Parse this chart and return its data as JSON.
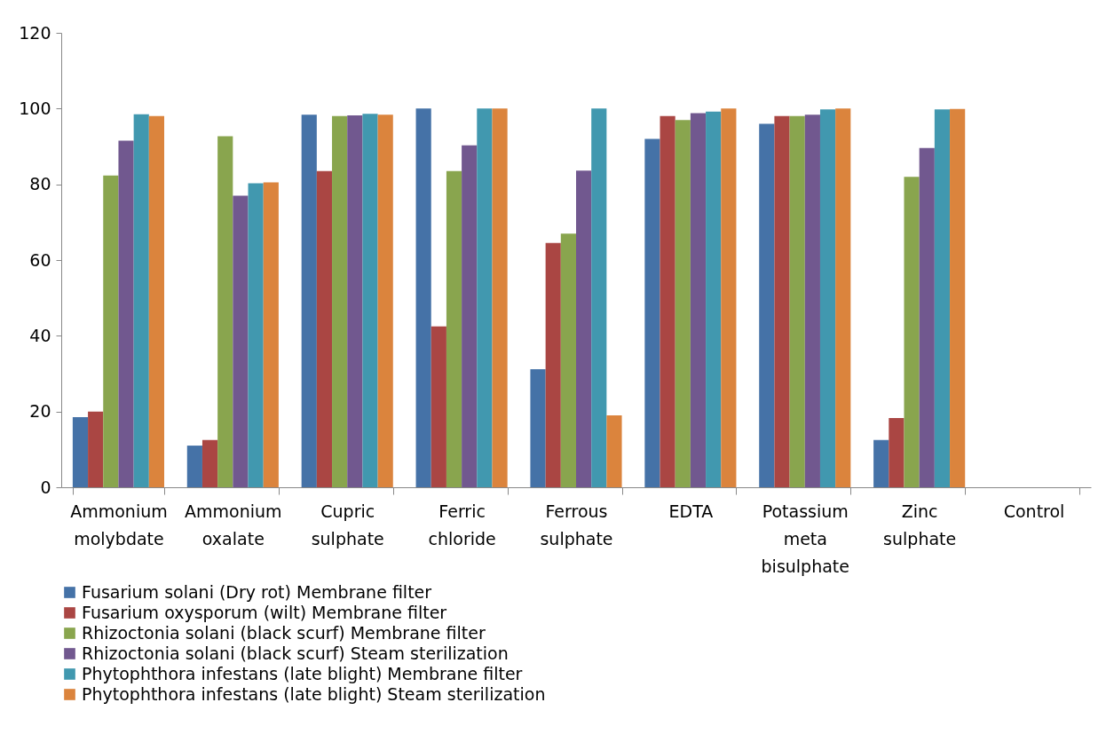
{
  "chart_data": {
    "type": "bar",
    "categories": [
      "Ammonium molybdate",
      "Ammonium oxalate",
      "Cupric sulphate",
      "Ferric chloride",
      "Ferrous sulphate",
      "EDTA",
      "Potassium meta bisulphate",
      "Zinc sulphate",
      "Control"
    ],
    "series": [
      {
        "name": "Fusarium solani (Dry rot) Membrane filter",
        "color": "#4572a7",
        "values": [
          18.5,
          11,
          98.4,
          100,
          31.2,
          92,
          96,
          12.5,
          0
        ]
      },
      {
        "name": "Fusarium oxysporum (wilt) Membrane filter",
        "color": "#aa4643",
        "values": [
          20,
          12.5,
          83.5,
          42.5,
          64.5,
          98,
          98,
          18.3,
          0
        ]
      },
      {
        "name": "Rhizoctonia solani  (black scurf) Membrane filter",
        "color": "#89a54e",
        "values": [
          82.3,
          92.7,
          98,
          83.5,
          67,
          97,
          98,
          82,
          0
        ]
      },
      {
        "name": "Rhizoctonia solani  (black scurf) Steam sterilization",
        "color": "#71588f",
        "values": [
          91.5,
          77,
          98.2,
          90.3,
          83.6,
          98.8,
          98.4,
          89.6,
          0
        ]
      },
      {
        "name": "Phytophthora infestans (late blight) Membrane filter",
        "color": "#4198af",
        "values": [
          98.5,
          80.3,
          98.6,
          100,
          100,
          99.2,
          99.8,
          99.8,
          0
        ]
      },
      {
        "name": "Phytophthora infestans (late blight) Steam sterilization",
        "color": "#db843d",
        "values": [
          98,
          80.5,
          98.4,
          100,
          19,
          100,
          100,
          99.9,
          0
        ]
      }
    ],
    "ylim": [
      0,
      120
    ],
    "yticks": [
      0,
      20,
      40,
      60,
      80,
      100,
      120
    ],
    "grid": false,
    "legend": "bottom"
  }
}
